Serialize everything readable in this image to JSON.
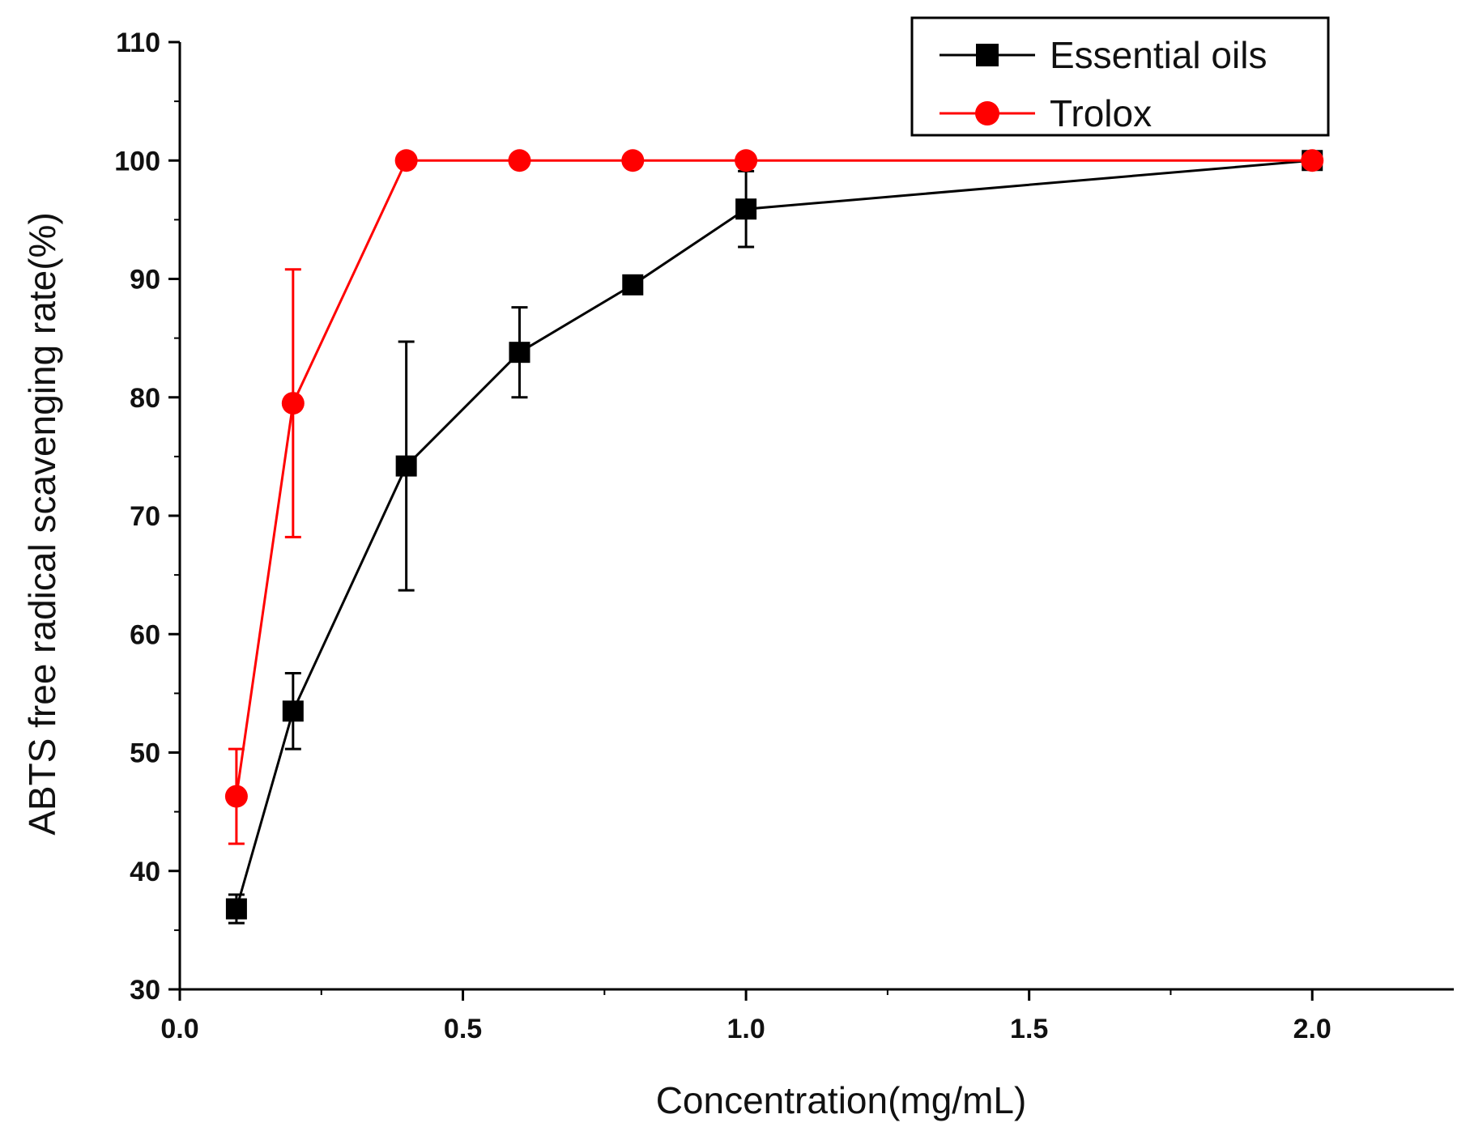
{
  "chart_data": {
    "type": "line",
    "title": "",
    "xlabel": "Concentration(mg/mL)",
    "ylabel": "ABTS free radical scavenging rate(%)",
    "xlim": [
      0.0,
      2.25
    ],
    "ylim": [
      30,
      110
    ],
    "x_ticks": [
      0.0,
      0.5,
      1.0,
      1.5,
      2.0
    ],
    "x_tick_labels": [
      "0.0",
      "0.5",
      "1.0",
      "1.5",
      "2.0"
    ],
    "y_ticks": [
      30,
      40,
      50,
      60,
      70,
      80,
      90,
      100,
      110
    ],
    "y_tick_labels": [
      "30",
      "40",
      "50",
      "60",
      "70",
      "80",
      "90",
      "100",
      "110"
    ],
    "grid": false,
    "legend_position": "top-right",
    "series": [
      {
        "name": "Essential oils",
        "color": "#000000",
        "marker": "square",
        "x": [
          0.1,
          0.2,
          0.4,
          0.6,
          0.8,
          1.0,
          2.0
        ],
        "values": [
          36.8,
          53.5,
          74.2,
          83.8,
          89.5,
          95.9,
          100.0
        ],
        "error": [
          1.2,
          3.2,
          10.5,
          3.8,
          0.7,
          3.2,
          0.3
        ]
      },
      {
        "name": "Trolox",
        "color": "#ff0000",
        "marker": "circle",
        "x": [
          0.1,
          0.2,
          0.4,
          0.6,
          0.8,
          1.0,
          2.0
        ],
        "values": [
          46.3,
          79.5,
          100.0,
          100.0,
          100.0,
          100.0,
          100.0
        ],
        "error": [
          4.0,
          11.3,
          0.0,
          0.0,
          0.0,
          0.0,
          0.0
        ]
      }
    ]
  }
}
